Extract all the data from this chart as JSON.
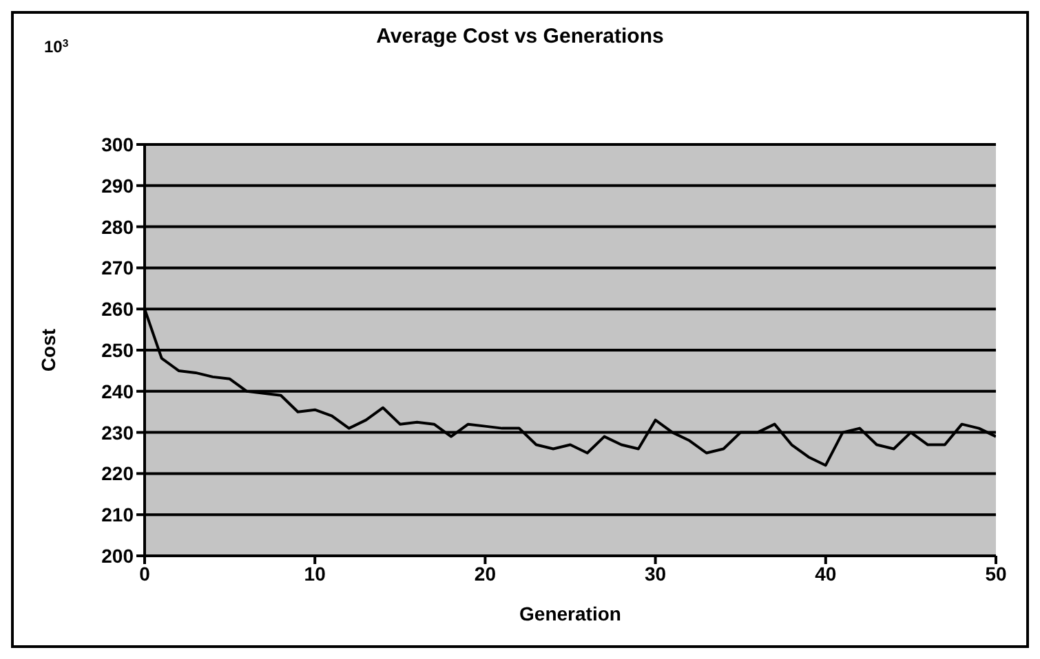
{
  "chart_data": {
    "type": "line",
    "title": "Average Cost vs Generations",
    "xlabel": "Generation",
    "ylabel": "Cost",
    "annotations": [
      "10$^{3}$"
    ],
    "x": [
      0,
      1,
      2,
      3,
      4,
      5,
      6,
      7,
      8,
      9,
      10,
      11,
      12,
      13,
      14,
      15,
      16,
      17,
      18,
      19,
      20,
      21,
      22,
      23,
      24,
      25,
      26,
      27,
      28,
      29,
      30,
      31,
      32,
      33,
      34,
      35,
      36,
      37,
      38,
      39,
      40,
      41,
      42,
      43,
      44,
      45,
      46,
      47,
      48,
      49,
      50
    ],
    "series": [
      {
        "color": "#000000",
        "values": [
          260,
          248,
          245,
          244.5,
          243.5,
          243,
          240,
          239.5,
          239,
          235,
          235.5,
          234,
          231,
          233,
          236,
          232,
          232.5,
          232,
          229,
          232,
          231.5,
          231,
          231,
          227,
          226,
          227,
          225,
          229,
          227,
          226,
          233,
          230,
          228,
          225,
          226,
          230,
          230,
          232,
          227,
          224,
          222,
          230,
          231,
          227,
          226,
          230,
          227,
          227,
          232,
          231,
          229
        ]
      }
    ],
    "xlim": [
      0,
      50
    ],
    "xticks": [
      0,
      10,
      20,
      30,
      40,
      50
    ],
    "ylim": [
      200,
      300
    ],
    "yticks": [
      200,
      210,
      220,
      230,
      240,
      250,
      260,
      270,
      280,
      290,
      300
    ],
    "grid": "y",
    "marker": "none",
    "line_style": "solid"
  }
}
